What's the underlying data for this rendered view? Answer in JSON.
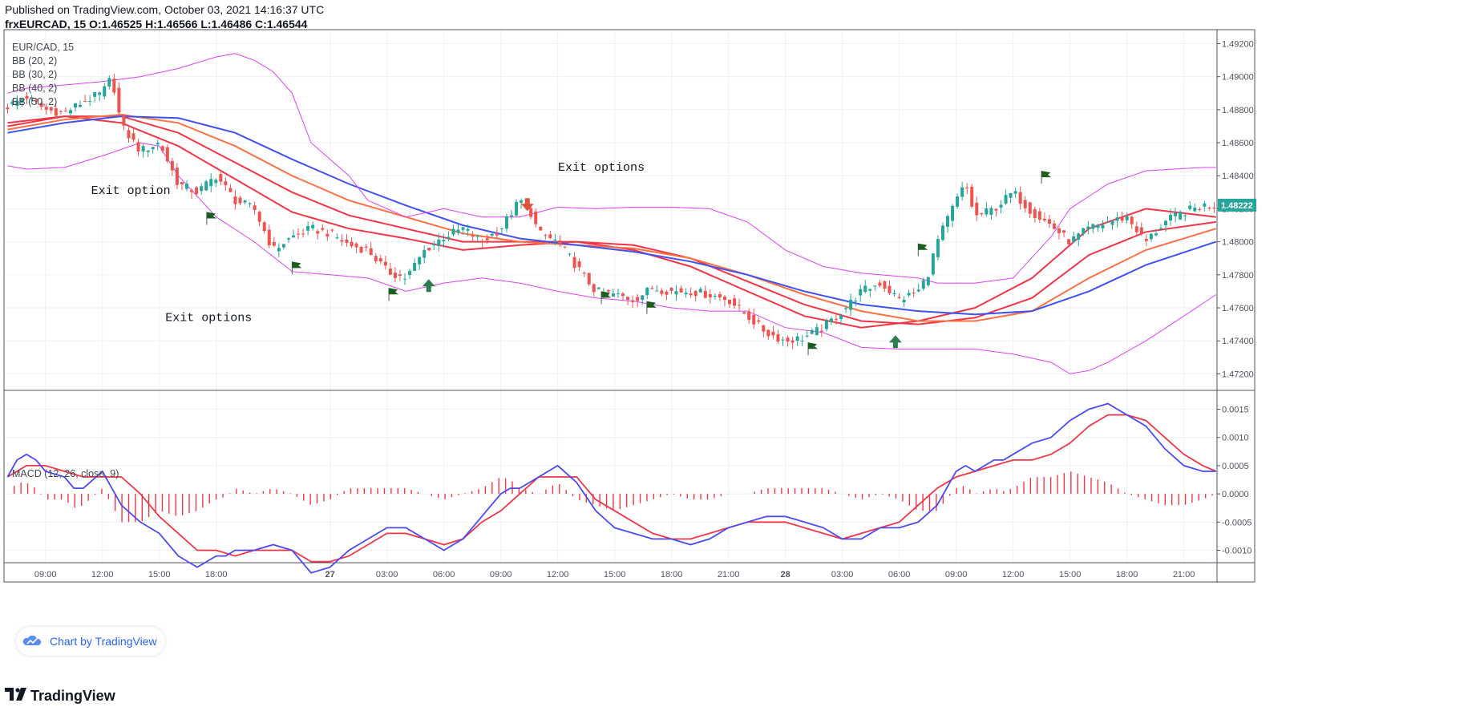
{
  "header": {
    "published": "Published on TradingView.com, October 03, 2021 14:16:37 UTC",
    "symbol": "frxEURCAD, 15",
    "ohlc": "O:1.46525 H:1.46566 L:1.46486 C:1.46544"
  },
  "legend": {
    "symbol": "EUR/CAD, 15",
    "bb": [
      "BB (20, 2)",
      "BB (30, 2)",
      "BB (40, 2)",
      "BB (50, 2)"
    ],
    "macd": "MACD (12, 26, close, 9)"
  },
  "watermark": "Chart by TradingView",
  "footer_logo": "TradingView",
  "current_price_label": "1.48222",
  "colors": {
    "bull": "#26a69a",
    "bear": "#ef5350",
    "band_outer": "#e040fb",
    "bb20": "#f23645",
    "bb30": "#f23645",
    "bb40": "#ff7043",
    "bb50": "#3f51f5",
    "macd_line": "#4a4af5",
    "signal_line": "#f23645",
    "histogram": "#f23645",
    "flag": "#1b5e20",
    "arrow_up": "#2e7d4f",
    "arrow_down": "#e0533a"
  },
  "annotations": [
    {
      "text": "Exit option",
      "x": 13.5,
      "y": 1.4829
    },
    {
      "text": "Exit options",
      "x": 17.6,
      "y": 1.4752
    },
    {
      "text": "Exit options",
      "x": 38.3,
      "y": 1.4843
    }
  ],
  "chart_data": [
    {
      "type": "candlestick",
      "title": "EUR/CAD, 15",
      "x_tick_labels": [
        "09:00",
        "12:00",
        "15:00",
        "18:00",
        "27",
        "03:00",
        "06:00",
        "09:00",
        "12:00",
        "15:00",
        "18:00",
        "21:00",
        "28",
        "03:00",
        "06:00",
        "09:00",
        "12:00",
        "15:00",
        "18:00",
        "21:00"
      ],
      "x_tick_hours": [
        9,
        12,
        15,
        18,
        24,
        27,
        30,
        33,
        36,
        39,
        42,
        45,
        48,
        51,
        54,
        57,
        60,
        63,
        66,
        69
      ],
      "y_tick_labels": [
        "1.49200",
        "1.49000",
        "1.48800",
        "1.48600",
        "1.48400",
        "1.48200",
        "1.48000",
        "1.47800",
        "1.47600",
        "1.47400",
        "1.47200"
      ],
      "ylim": [
        1.471,
        1.4928
      ],
      "xlim": [
        6.9,
        70.75
      ],
      "grid": true,
      "price_anchors": [
        [
          7.0,
          1.4882
        ],
        [
          8.0,
          1.4888
        ],
        [
          9.0,
          1.488
        ],
        [
          10.0,
          1.4878
        ],
        [
          11.0,
          1.4885
        ],
        [
          12.0,
          1.489
        ],
        [
          12.5,
          1.49
        ],
        [
          13.0,
          1.487
        ],
        [
          14.0,
          1.4855
        ],
        [
          15.0,
          1.486
        ],
        [
          16.0,
          1.4835
        ],
        [
          17.0,
          1.483
        ],
        [
          18.0,
          1.484
        ],
        [
          19.0,
          1.4825
        ],
        [
          20.0,
          1.482
        ],
        [
          21.0,
          1.4795
        ],
        [
          22.0,
          1.4803
        ],
        [
          23.0,
          1.4808
        ],
        [
          24.0,
          1.4805
        ],
        [
          25.0,
          1.4798
        ],
        [
          26.0,
          1.4795
        ],
        [
          27.0,
          1.4782
        ],
        [
          28.0,
          1.4778
        ],
        [
          29.0,
          1.4795
        ],
        [
          30.0,
          1.4803
        ],
        [
          31.0,
          1.4808
        ],
        [
          32.0,
          1.48
        ],
        [
          33.0,
          1.4808
        ],
        [
          33.7,
          1.482
        ],
        [
          34.0,
          1.4825
        ],
        [
          34.5,
          1.482
        ],
        [
          35.0,
          1.4805
        ],
        [
          36.0,
          1.48
        ],
        [
          37.0,
          1.4785
        ],
        [
          38.0,
          1.477
        ],
        [
          39.0,
          1.4768
        ],
        [
          40.0,
          1.4765
        ],
        [
          41.0,
          1.4772
        ],
        [
          42.0,
          1.477
        ],
        [
          43.0,
          1.477
        ],
        [
          44.0,
          1.4768
        ],
        [
          45.0,
          1.4765
        ],
        [
          46.0,
          1.4755
        ],
        [
          47.0,
          1.4745
        ],
        [
          48.0,
          1.474
        ],
        [
          49.0,
          1.4742
        ],
        [
          50.0,
          1.4748
        ],
        [
          51.0,
          1.4758
        ],
        [
          52.0,
          1.477
        ],
        [
          53.0,
          1.4775
        ],
        [
          54.0,
          1.4765
        ],
        [
          55.0,
          1.477
        ],
        [
          55.5,
          1.478
        ],
        [
          56.0,
          1.48
        ],
        [
          57.0,
          1.4825
        ],
        [
          57.5,
          1.4835
        ],
        [
          58.0,
          1.4815
        ],
        [
          59.0,
          1.482
        ],
        [
          60.0,
          1.483
        ],
        [
          61.0,
          1.4818
        ],
        [
          62.0,
          1.481
        ],
        [
          63.0,
          1.48
        ],
        [
          64.0,
          1.4808
        ],
        [
          65.0,
          1.4812
        ],
        [
          66.0,
          1.4815
        ],
        [
          67.0,
          1.48
        ],
        [
          68.0,
          1.4812
        ],
        [
          69.0,
          1.4818
        ],
        [
          70.0,
          1.4822
        ],
        [
          70.7,
          1.4822
        ]
      ],
      "series": [
        {
          "name": "BB (20, 2) basis",
          "x": [
            7,
            10,
            13,
            16,
            19,
            22,
            25,
            28,
            31,
            34,
            37,
            40,
            43,
            46,
            49,
            52,
            55,
            58,
            61,
            64,
            67,
            70.7
          ],
          "y": [
            1.4872,
            1.4876,
            1.4872,
            1.4858,
            1.4838,
            1.4818,
            1.4808,
            1.4802,
            1.4795,
            1.4798,
            1.48,
            1.4795,
            1.4785,
            1.477,
            1.4755,
            1.4748,
            1.4752,
            1.476,
            1.4778,
            1.4808,
            1.482,
            1.4815
          ]
        },
        {
          "name": "BB (30, 2) basis",
          "x": [
            7,
            10,
            13,
            16,
            19,
            22,
            25,
            28,
            31,
            34,
            37,
            40,
            43,
            46,
            49,
            52,
            55,
            58,
            61,
            64,
            67,
            70.7
          ],
          "y": [
            1.487,
            1.4876,
            1.4876,
            1.4866,
            1.4848,
            1.483,
            1.4816,
            1.4808,
            1.48,
            1.48,
            1.48,
            1.4798,
            1.479,
            1.4776,
            1.4762,
            1.4752,
            1.475,
            1.4754,
            1.4766,
            1.4792,
            1.4806,
            1.4812
          ]
        },
        {
          "name": "BB (40, 2) basis",
          "x": [
            7,
            10,
            13,
            16,
            19,
            22,
            25,
            28,
            31,
            34,
            37,
            40,
            43,
            46,
            49,
            52,
            55,
            58,
            61,
            64,
            67,
            70.7
          ],
          "y": [
            1.4868,
            1.4874,
            1.4877,
            1.4872,
            1.4858,
            1.484,
            1.4825,
            1.4815,
            1.4805,
            1.48,
            1.4798,
            1.4796,
            1.479,
            1.478,
            1.4768,
            1.4758,
            1.4752,
            1.4752,
            1.4758,
            1.4778,
            1.4795,
            1.4808
          ]
        },
        {
          "name": "BB (50, 2) basis",
          "x": [
            7,
            10,
            13,
            16,
            19,
            22,
            25,
            28,
            31,
            34,
            37,
            40,
            43,
            46,
            49,
            52,
            55,
            58,
            61,
            64,
            67,
            70.7
          ],
          "y": [
            1.4866,
            1.4872,
            1.4876,
            1.4875,
            1.4866,
            1.485,
            1.4835,
            1.4822,
            1.481,
            1.4802,
            1.4798,
            1.4794,
            1.4788,
            1.478,
            1.477,
            1.4762,
            1.4758,
            1.4756,
            1.4758,
            1.477,
            1.4786,
            1.48
          ]
        },
        {
          "name": "BB (20, 2) upper",
          "x": [
            7,
            8,
            10,
            12,
            14,
            16,
            18,
            19,
            20,
            21,
            22,
            23,
            24,
            25,
            26,
            28,
            30,
            32,
            34,
            36,
            38,
            40,
            42,
            44,
            46,
            48,
            50,
            52,
            53,
            55,
            56,
            58,
            60,
            62,
            63,
            65,
            67,
            70,
            70.7
          ],
          "y": [
            1.489,
            1.4893,
            1.4895,
            1.4897,
            1.49,
            1.4905,
            1.4912,
            1.4914,
            1.491,
            1.4903,
            1.489,
            1.486,
            1.485,
            1.484,
            1.4825,
            1.4815,
            1.482,
            1.4815,
            1.4815,
            1.4821,
            1.482,
            1.4821,
            1.4821,
            1.482,
            1.4812,
            1.4795,
            1.4785,
            1.4781,
            1.478,
            1.4778,
            1.4775,
            1.4775,
            1.4778,
            1.4803,
            1.482,
            1.4835,
            1.4843,
            1.4845,
            1.4845
          ]
        },
        {
          "name": "BB (20, 2) lower",
          "x": [
            7,
            8,
            10,
            12,
            14,
            15,
            16,
            18,
            20,
            22,
            24,
            26,
            28,
            30,
            32,
            34,
            36,
            38,
            40,
            42,
            44,
            46,
            48,
            50,
            52,
            54,
            56,
            58,
            60,
            62,
            63,
            64,
            65,
            67,
            69,
            70.7
          ],
          "y": [
            1.4846,
            1.4844,
            1.4845,
            1.4852,
            1.486,
            1.4858,
            1.484,
            1.4815,
            1.48,
            1.4782,
            1.478,
            1.4778,
            1.477,
            1.4775,
            1.4778,
            1.4775,
            1.477,
            1.4766,
            1.4764,
            1.476,
            1.4758,
            1.4758,
            1.4748,
            1.4745,
            1.4736,
            1.4735,
            1.4735,
            1.4735,
            1.4732,
            1.4727,
            1.472,
            1.4722,
            1.4727,
            1.474,
            1.4755,
            1.4768
          ]
        },
        {
          "name": "MACD",
          "x": [
            7,
            7.5,
            8,
            8.5,
            9,
            10,
            10.5,
            11,
            12,
            13,
            14,
            15,
            16,
            17,
            18,
            18.5,
            19,
            20,
            21,
            22,
            23,
            24,
            25,
            26,
            27,
            28,
            29,
            30,
            31,
            32,
            33,
            33.5,
            34,
            35,
            36,
            37,
            38,
            39,
            40,
            41,
            42,
            43,
            44,
            45,
            46,
            47,
            48,
            49,
            50,
            51,
            52,
            53,
            54,
            55,
            56,
            57,
            57.5,
            58,
            59,
            59.5,
            60,
            61,
            62,
            63,
            64,
            65,
            66,
            67,
            68,
            69,
            70,
            70.7
          ],
          "y": [
            0.0003,
            0.0006,
            0.0007,
            0.0006,
            0.0004,
            0.0003,
            0.0001,
            0.0001,
            0.0004,
            -0.0002,
            -0.0005,
            -0.0007,
            -0.0011,
            -0.0013,
            -0.0011,
            -0.0011,
            -0.001,
            -0.001,
            -0.0009,
            -0.001,
            -0.0014,
            -0.0013,
            -0.001,
            -0.0008,
            -0.0006,
            -0.0006,
            -0.0008,
            -0.001,
            -0.0008,
            -0.0004,
            0.0,
            0.0001,
            0.0001,
            0.0003,
            0.0005,
            0.0002,
            -0.0003,
            -0.0006,
            -0.0007,
            -0.0008,
            -0.0008,
            -0.0009,
            -0.0008,
            -0.0006,
            -0.0005,
            -0.0004,
            -0.0004,
            -0.0005,
            -0.0006,
            -0.0008,
            -0.0008,
            -0.0006,
            -0.0006,
            -0.0005,
            -0.0002,
            0.0004,
            0.0005,
            0.0004,
            0.0006,
            0.0006,
            0.0007,
            0.0009,
            0.001,
            0.0013,
            0.0015,
            0.0016,
            0.0014,
            0.0012,
            0.0008,
            0.0005,
            0.0004,
            0.0004
          ]
        },
        {
          "name": "Signal",
          "x": [
            7,
            7.5,
            8,
            8.5,
            9,
            10,
            11,
            12,
            13,
            14,
            15,
            16,
            17,
            18,
            19,
            20,
            21,
            22,
            23,
            24,
            25,
            26,
            27,
            28,
            29,
            30,
            31,
            32,
            33,
            34,
            35,
            36,
            37,
            38,
            39,
            40,
            41,
            42,
            43,
            44,
            45,
            46,
            47,
            48,
            49,
            50,
            51,
            52,
            53,
            54,
            55,
            56,
            57,
            58,
            59,
            60,
            61,
            62,
            63,
            64,
            65,
            66,
            67,
            68,
            69,
            70,
            70.7
          ],
          "y": [
            0.0003,
            0.0004,
            0.0005,
            0.0005,
            0.0005,
            0.0004,
            0.0003,
            0.0003,
            0.0003,
            0.0,
            -0.0004,
            -0.0007,
            -0.001,
            -0.001,
            -0.0011,
            -0.001,
            -0.001,
            -0.001,
            -0.0012,
            -0.0012,
            -0.0011,
            -0.0009,
            -0.0007,
            -0.0007,
            -0.0008,
            -0.0009,
            -0.0008,
            -0.0005,
            -0.0003,
            0.0,
            0.0003,
            0.0003,
            0.0003,
            -0.0001,
            -0.0003,
            -0.0005,
            -0.0007,
            -0.0008,
            -0.0008,
            -0.0007,
            -0.0006,
            -0.0005,
            -0.0005,
            -0.0005,
            -0.0006,
            -0.0007,
            -0.0008,
            -0.0007,
            -0.0006,
            -0.0005,
            -0.0002,
            0.0001,
            0.0003,
            0.0004,
            0.0005,
            0.0006,
            0.0006,
            0.0007,
            0.0009,
            0.0012,
            0.0014,
            0.0014,
            0.0013,
            0.001,
            0.0007,
            0.0005,
            0.0004
          ]
        }
      ]
    },
    {
      "type": "line",
      "title": "MACD (12, 26, close, 9)",
      "y_tick_labels": [
        "0.0015",
        "0.0010",
        "0.0005",
        "0.0000",
        "-0.0005",
        "-0.0010"
      ],
      "ylim": [
        -0.00122,
        0.00182
      ],
      "grid": true
    }
  ],
  "markers": {
    "flags": [
      [
        17.5,
        1.4818
      ],
      [
        22.0,
        1.4788
      ],
      [
        27.1,
        1.4772
      ],
      [
        38.3,
        1.477
      ],
      [
        40.7,
        1.4764
      ],
      [
        49.2,
        1.4739
      ],
      [
        55.0,
        1.4799
      ],
      [
        61.5,
        1.4843
      ]
    ],
    "arrows_up": [
      [
        29.2,
        1.4773
      ],
      [
        53.8,
        1.4739
      ]
    ],
    "arrows_down": [
      [
        34.4,
        1.4823
      ]
    ]
  }
}
